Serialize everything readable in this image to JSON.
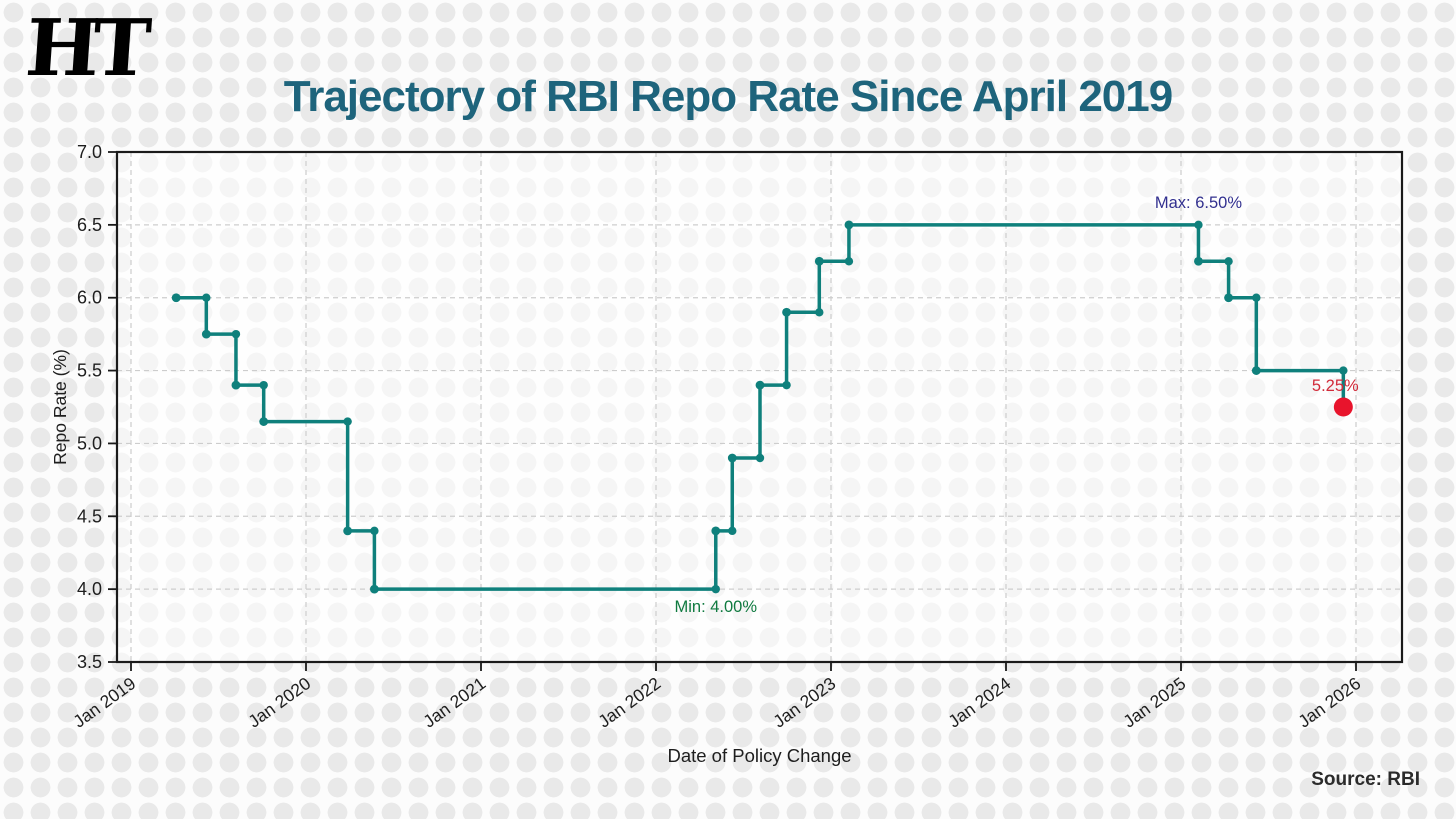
{
  "page": {
    "logo_text": "HT",
    "title": "Trajectory of RBI Repo Rate Since April 2019",
    "source": "Source: RBI"
  },
  "chart_data": {
    "type": "line",
    "subtype": "step-post",
    "title": "Trajectory of RBI Repo Rate Since April 2019",
    "xlabel": "Date of Policy Change",
    "ylabel": "Repo Rate (%)",
    "ylim": [
      3.5,
      7.0
    ],
    "grid": true,
    "grid_style": "dashed",
    "x_tick_labels": [
      "Jan 2019",
      "Jan 2020",
      "Jan 2021",
      "Jan 2022",
      "Jan 2023",
      "Jan 2024",
      "Jan 2025",
      "Jan 2026"
    ],
    "y_tick_labels": [
      "3.5",
      "4.0",
      "4.5",
      "5.0",
      "5.5",
      "6.0",
      "6.5",
      "7.0"
    ],
    "points": [
      {
        "date": "2019-04-04",
        "rate": 6.0
      },
      {
        "date": "2019-06-06",
        "rate": 5.75
      },
      {
        "date": "2019-08-07",
        "rate": 5.4
      },
      {
        "date": "2019-10-04",
        "rate": 5.15
      },
      {
        "date": "2020-03-27",
        "rate": 4.4
      },
      {
        "date": "2020-05-22",
        "rate": 4.0
      },
      {
        "date": "2022-05-04",
        "rate": 4.4
      },
      {
        "date": "2022-06-08",
        "rate": 4.9
      },
      {
        "date": "2022-08-05",
        "rate": 5.4
      },
      {
        "date": "2022-09-30",
        "rate": 5.9
      },
      {
        "date": "2022-12-07",
        "rate": 6.25
      },
      {
        "date": "2023-02-08",
        "rate": 6.5
      },
      {
        "date": "2025-02-07",
        "rate": 6.25
      },
      {
        "date": "2025-04-09",
        "rate": 6.0
      },
      {
        "date": "2025-06-06",
        "rate": 5.5
      },
      {
        "date": "2025-12-05",
        "rate": 5.25
      }
    ],
    "annotations": [
      {
        "id": "max",
        "text": "Max: 6.50%",
        "attach_date": "2025-02-07",
        "attach_rate": 6.5,
        "color": "#32308f"
      },
      {
        "id": "min",
        "text": "Min: 4.00%",
        "attach_date": "2022-05-04",
        "attach_rate": 4.0,
        "color": "#107a40"
      },
      {
        "id": "latest",
        "text": "5.25%",
        "attach_date": "2025-12-05",
        "attach_rate": 5.25,
        "color": "#d22b3a"
      }
    ],
    "colors": {
      "line": "#0f807c",
      "latest_dot": "#e8142c",
      "axis": "#1a1a1a",
      "grid": "#cdcdcd",
      "tick_text": "#1e1e1e",
      "title": "#1e647c"
    },
    "legend": null
  }
}
